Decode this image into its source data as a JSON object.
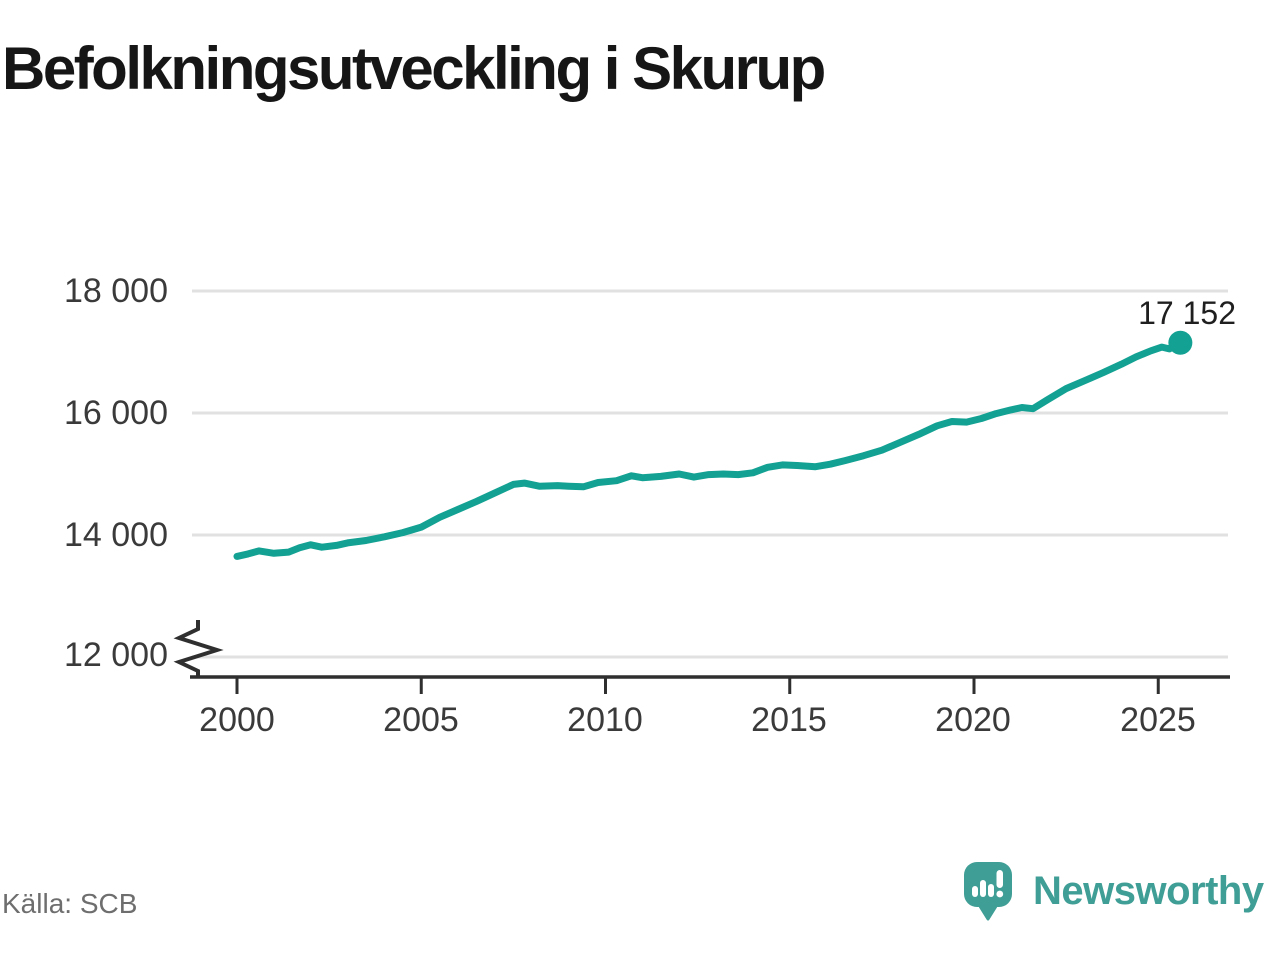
{
  "title": "Befolkningsutveckling i Skurup",
  "source": "Källa: SCB",
  "branding": {
    "name": "Newsworthy",
    "logo_icon": "speech-bubble-bar-chart-exclamation"
  },
  "colors": {
    "line": "#12a192",
    "dot": "#12a192",
    "grid": "#e1e1e1",
    "axis": "#2f2f2f",
    "tick_text": "#3a3a3a",
    "title_text": "#161616",
    "source_text": "#6e6e6e",
    "brand_teal": "#3f9e95"
  },
  "chart_data": {
    "type": "line",
    "title": "Befolkningsutveckling i Skurup",
    "xlabel": "",
    "ylabel": "",
    "x_tick_labels": [
      "2000",
      "2005",
      "2010",
      "2015",
      "2020",
      "2025"
    ],
    "x_ticks": [
      2000,
      2005,
      2010,
      2015,
      2020,
      2025
    ],
    "y_tick_labels": [
      "18 000",
      "16 000",
      "14 000",
      "12 000"
    ],
    "y_ticks": [
      18000,
      16000,
      14000,
      12000
    ],
    "ylim": [
      12000,
      18000
    ],
    "xlim": [
      1998.7,
      2027
    ],
    "y_axis_break": true,
    "grid": "horizontal",
    "legend": "none",
    "last_point": {
      "x": 2025.6,
      "y": 17152,
      "label": "17 152"
    },
    "series": [
      {
        "name": "Befolkning",
        "points": [
          [
            2000.0,
            13650
          ],
          [
            2000.3,
            13690
          ],
          [
            2000.6,
            13740
          ],
          [
            2001.0,
            13700
          ],
          [
            2001.4,
            13720
          ],
          [
            2001.7,
            13790
          ],
          [
            2002.0,
            13840
          ],
          [
            2002.3,
            13800
          ],
          [
            2002.7,
            13830
          ],
          [
            2003.0,
            13870
          ],
          [
            2003.5,
            13910
          ],
          [
            2004.0,
            13970
          ],
          [
            2004.5,
            14040
          ],
          [
            2005.0,
            14130
          ],
          [
            2005.5,
            14290
          ],
          [
            2006.0,
            14420
          ],
          [
            2006.5,
            14550
          ],
          [
            2007.0,
            14690
          ],
          [
            2007.5,
            14830
          ],
          [
            2007.8,
            14850
          ],
          [
            2008.2,
            14800
          ],
          [
            2008.7,
            14810
          ],
          [
            2009.0,
            14800
          ],
          [
            2009.4,
            14790
          ],
          [
            2009.8,
            14860
          ],
          [
            2010.3,
            14890
          ],
          [
            2010.7,
            14970
          ],
          [
            2011.0,
            14940
          ],
          [
            2011.5,
            14960
          ],
          [
            2012.0,
            15000
          ],
          [
            2012.4,
            14950
          ],
          [
            2012.8,
            14990
          ],
          [
            2013.2,
            15000
          ],
          [
            2013.6,
            14990
          ],
          [
            2014.0,
            15020
          ],
          [
            2014.4,
            15110
          ],
          [
            2014.8,
            15150
          ],
          [
            2015.2,
            15140
          ],
          [
            2015.7,
            15120
          ],
          [
            2016.1,
            15160
          ],
          [
            2016.5,
            15220
          ],
          [
            2017.0,
            15300
          ],
          [
            2017.5,
            15390
          ],
          [
            2018.0,
            15520
          ],
          [
            2018.5,
            15650
          ],
          [
            2019.0,
            15790
          ],
          [
            2019.4,
            15860
          ],
          [
            2019.8,
            15850
          ],
          [
            2020.2,
            15910
          ],
          [
            2020.6,
            15990
          ],
          [
            2021.0,
            16050
          ],
          [
            2021.3,
            16090
          ],
          [
            2021.6,
            16070
          ],
          [
            2022.0,
            16220
          ],
          [
            2022.5,
            16400
          ],
          [
            2023.0,
            16530
          ],
          [
            2023.5,
            16660
          ],
          [
            2024.0,
            16800
          ],
          [
            2024.4,
            16920
          ],
          [
            2024.8,
            17020
          ],
          [
            2025.1,
            17080
          ],
          [
            2025.3,
            17050
          ],
          [
            2025.6,
            17152
          ]
        ]
      }
    ]
  }
}
